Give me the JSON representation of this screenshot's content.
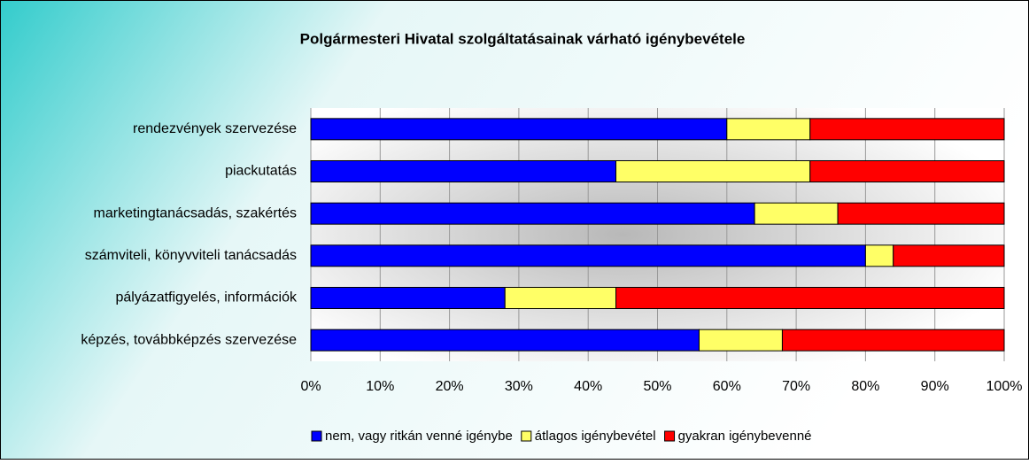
{
  "chart_data": {
    "type": "stacked_barh",
    "title": "Polgármesteri Hivatal szolgáltatásainak várható igénybevétele",
    "categories": [
      "rendezvények szervezése",
      "piackutatás",
      "marketingtanácsadás, szakértés",
      "számviteli, könyvviteli tanácsadás",
      "pályázatfigyelés, információk",
      "képzés, továbbképzés szervezése"
    ],
    "series": [
      {
        "name": "nem, vagy ritkán venné igénybe",
        "color": "#0000ff",
        "values": [
          60,
          44,
          64,
          80,
          28,
          56
        ]
      },
      {
        "name": "átlagos igénybevétel",
        "color": "#ffff66",
        "values": [
          12,
          28,
          12,
          4,
          16,
          12
        ]
      },
      {
        "name": "gyakran igénybevenné",
        "color": "#ff0000",
        "values": [
          28,
          28,
          24,
          16,
          56,
          32
        ]
      }
    ],
    "xlim": [
      0,
      100
    ],
    "xticks": [
      {
        "value": 0,
        "label": "0%"
      },
      {
        "value": 10,
        "label": "10%"
      },
      {
        "value": 20,
        "label": "20%"
      },
      {
        "value": 30,
        "label": "30%"
      },
      {
        "value": 40,
        "label": "40%"
      },
      {
        "value": 50,
        "label": "50%"
      },
      {
        "value": 60,
        "label": "60%"
      },
      {
        "value": 70,
        "label": "70%"
      },
      {
        "value": 80,
        "label": "80%"
      },
      {
        "value": 90,
        "label": "90%"
      },
      {
        "value": 100,
        "label": "100%"
      }
    ],
    "grid": true,
    "legend": "bottom"
  }
}
